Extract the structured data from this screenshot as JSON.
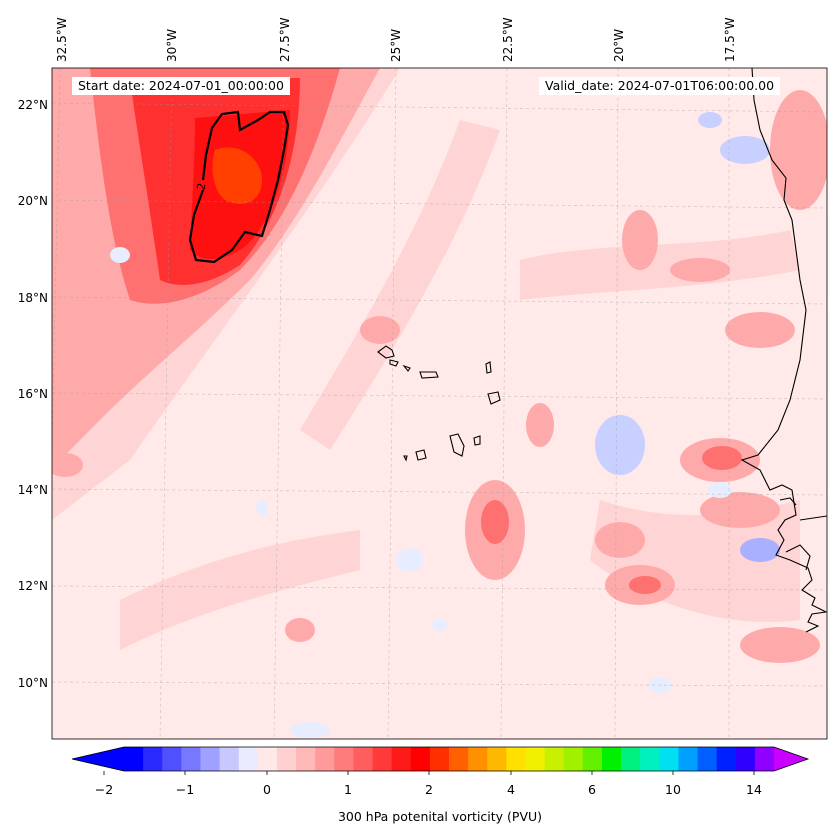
{
  "header": {
    "start_date": "Start date: 2024-07-01_00:00:00",
    "valid_date": "Valid_date: 2024-07-01T06:00:00.00"
  },
  "axes": {
    "longitude_labels": [
      "32.5°W",
      "30°W",
      "27.5°W",
      "25°W",
      "22.5°W",
      "20°W",
      "17.5°W"
    ],
    "latitude_labels": [
      "22°N",
      "20°N",
      "18°N",
      "16°N",
      "14°N",
      "12°N",
      "10°N"
    ]
  },
  "contour": {
    "label": "2"
  },
  "colorbar": {
    "label": "300 hPa potenital vorticity (PVU)",
    "ticks": [
      "−2",
      "−1",
      "0",
      "1",
      "2",
      "4",
      "6",
      "10",
      "14"
    ],
    "colors": [
      "#0000ff",
      "#2a2aff",
      "#5050ff",
      "#7878ff",
      "#a0a0ff",
      "#c8c8ff",
      "#ebebff",
      "#ffe8e8",
      "#ffd0d0",
      "#ffb8b8",
      "#ff9a9a",
      "#ff7c7c",
      "#ff5e5e",
      "#ff3a3a",
      "#ff1a1a",
      "#ff0000",
      "#ff3000",
      "#ff6000",
      "#ff9000",
      "#ffb800",
      "#ffe000",
      "#f0f000",
      "#c8f000",
      "#a0f000",
      "#60f000",
      "#00f000",
      "#00f080",
      "#00f0c0",
      "#00e0f0",
      "#00a0ff",
      "#0060ff",
      "#0020ff",
      "#3000ff",
      "#9000ff"
    ],
    "extend_low": "#0000ff",
    "extend_high": "#c800ff"
  },
  "map_colors": {
    "base": "#ffe9e9",
    "light": "#ffd4d4",
    "medium": "#ffaaaa",
    "strong": "#ff7070",
    "vstrong": "#ff3030",
    "core": "#ff1010",
    "orange": "#ff4000",
    "blue_light": "#e8ecff",
    "blue": "#c8d0ff",
    "blue_strong": "#a8b0ff"
  }
}
